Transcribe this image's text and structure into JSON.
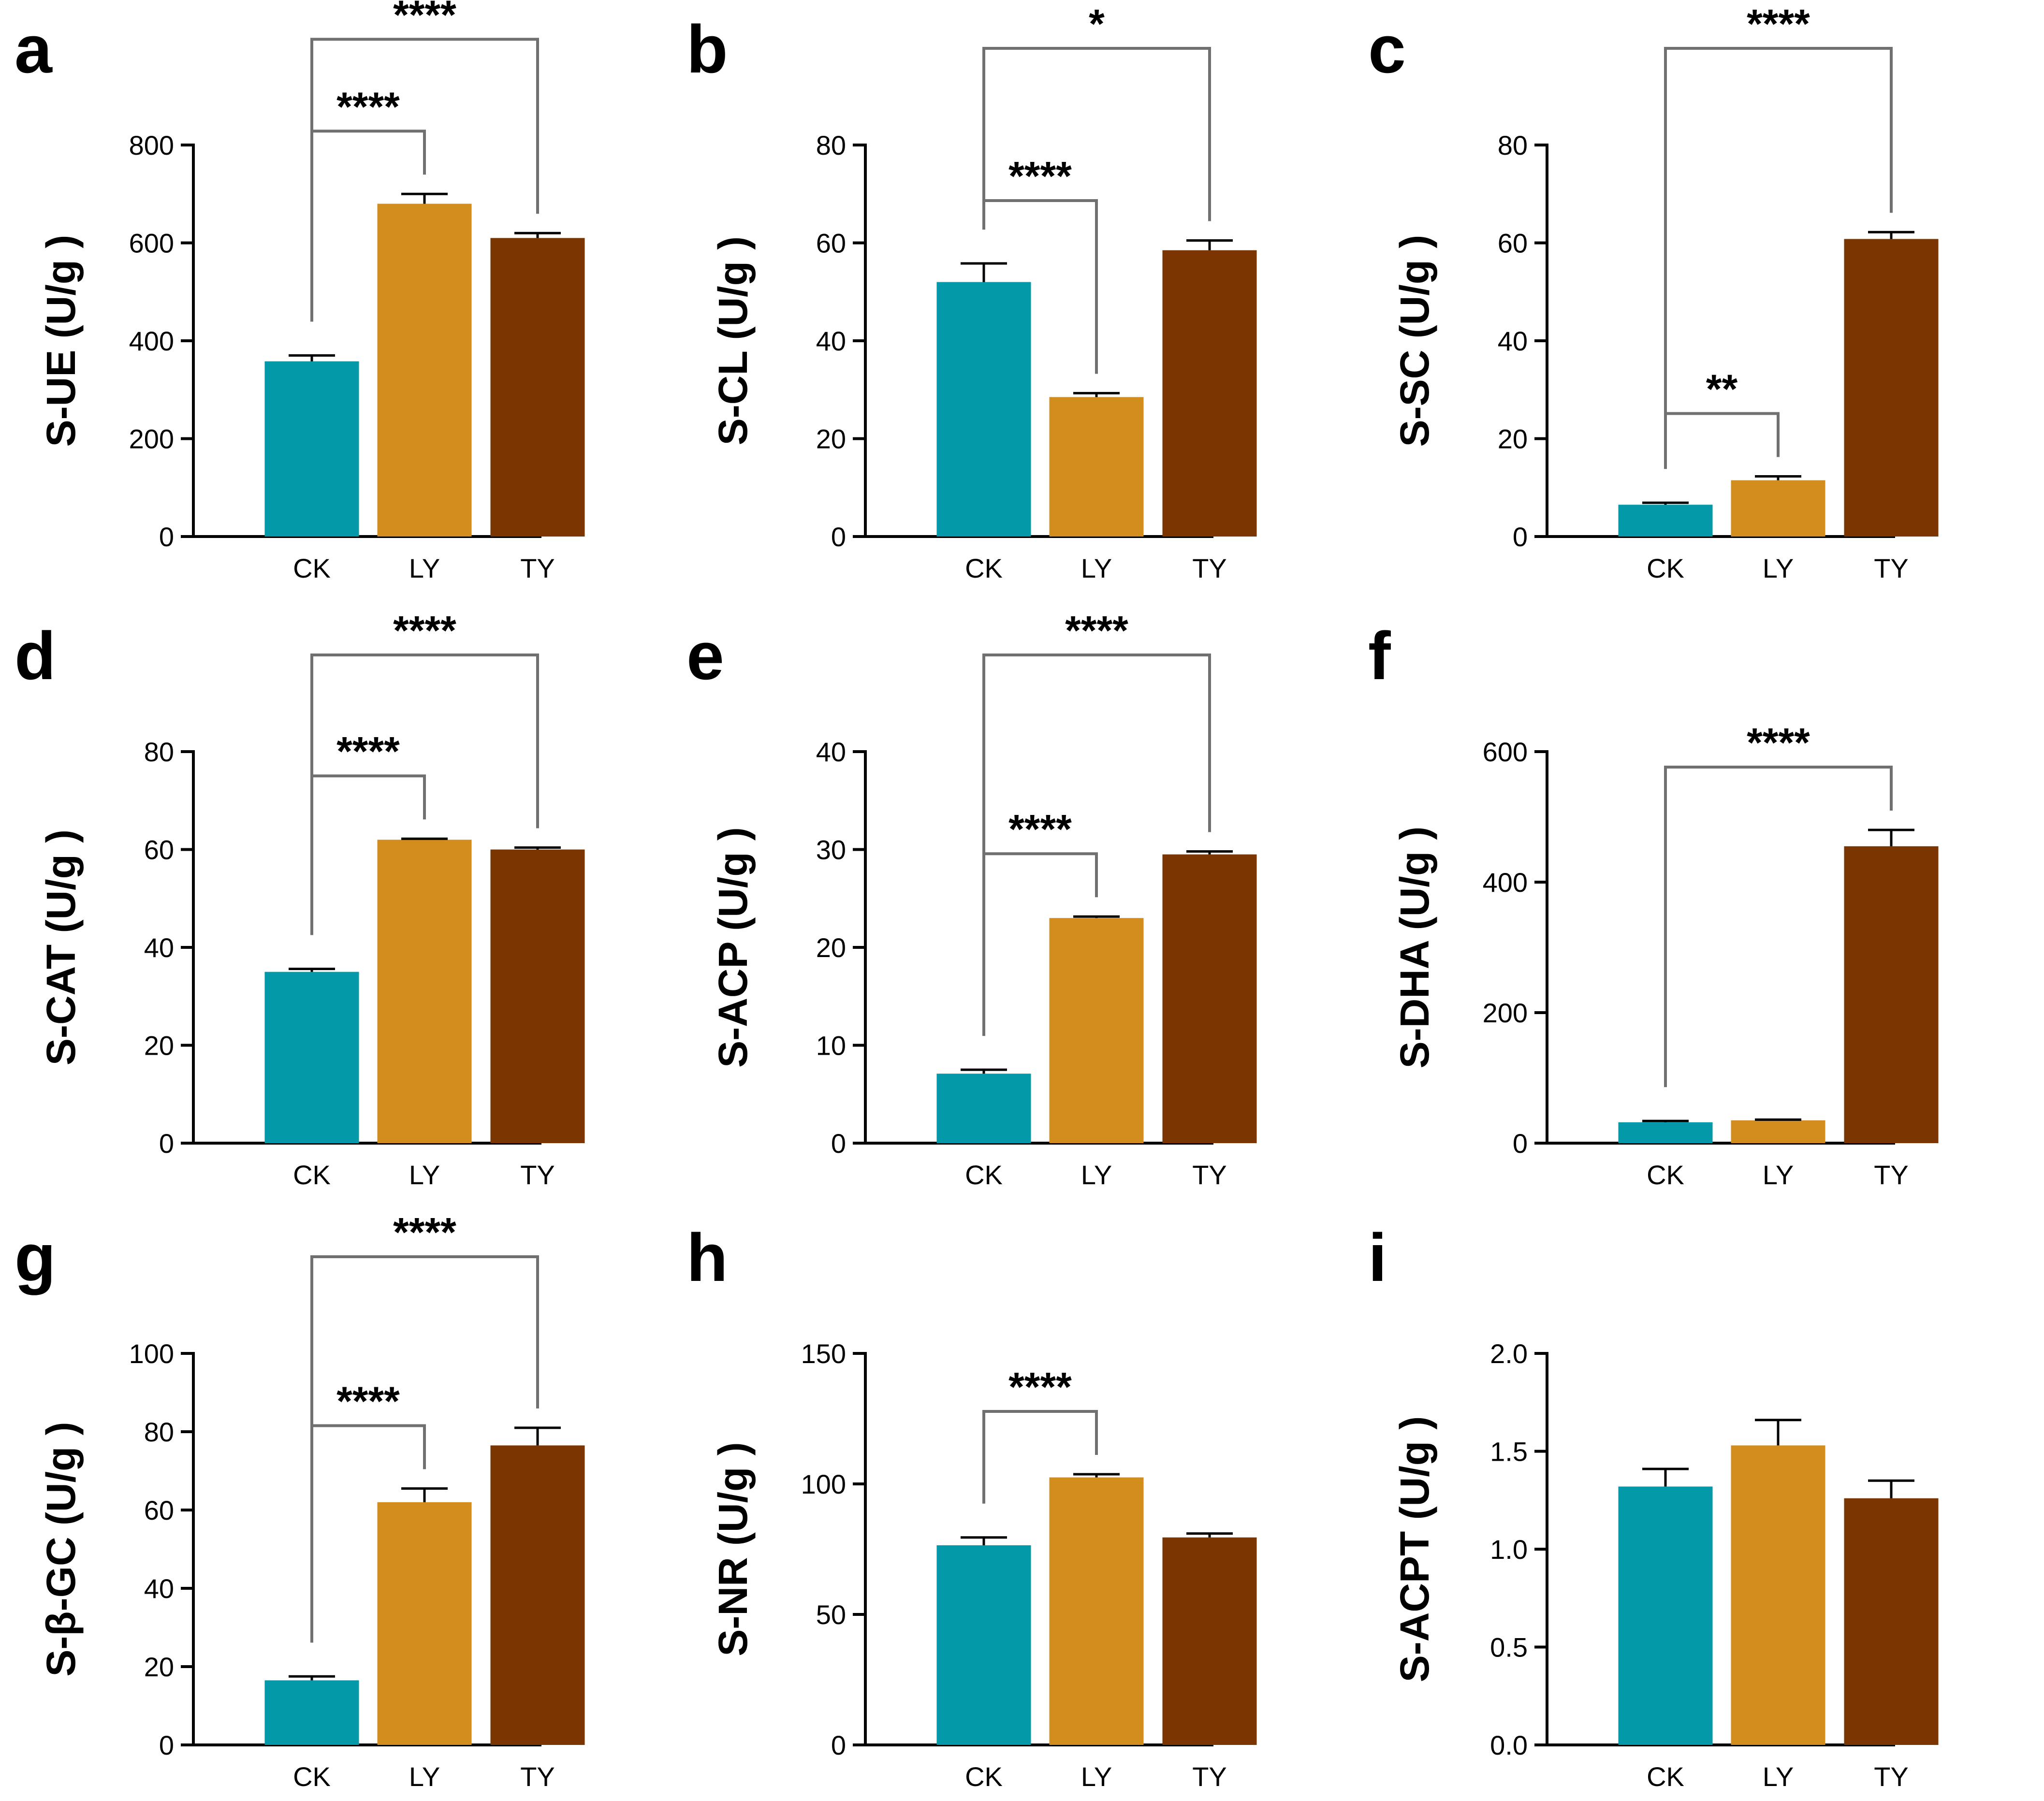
{
  "colors": {
    "CK": "#0399a8",
    "LY": "#d38d1d",
    "TY": "#7a3501",
    "bracket": "#707070",
    "axis": "#000000"
  },
  "chart_data": [
    {
      "letter": "a",
      "type": "bar",
      "ylabel": "S-UE (U/g )",
      "categories": [
        "CK",
        "LY",
        "TY"
      ],
      "values": [
        358,
        680,
        610
      ],
      "errors": [
        12,
        20,
        10
      ],
      "ylim": [
        0,
        800
      ],
      "yticks": [
        "0",
        "200",
        "400",
        "600",
        "800"
      ],
      "brackets": [
        {
          "from": 0,
          "to": 1,
          "label": "****"
        },
        {
          "from": 0,
          "to": 2,
          "label": "****"
        }
      ]
    },
    {
      "letter": "b",
      "type": "bar",
      "ylabel": "S-CL (U/g )",
      "categories": [
        "CK",
        "LY",
        "TY"
      ],
      "values": [
        52,
        28.5,
        58.5
      ],
      "errors": [
        3.8,
        0.8,
        2
      ],
      "ylim": [
        0,
        80
      ],
      "yticks": [
        "0",
        "20",
        "40",
        "60",
        "80"
      ],
      "brackets": [
        {
          "from": 0,
          "to": 1,
          "label": "****"
        },
        {
          "from": 0,
          "to": 2,
          "label": "*"
        }
      ]
    },
    {
      "letter": "c",
      "type": "bar",
      "ylabel": "S-SC (U/g )",
      "categories": [
        "CK",
        "LY",
        "TY"
      ],
      "values": [
        6.5,
        11.5,
        60.8
      ],
      "errors": [
        0.4,
        0.8,
        1.4
      ],
      "ylim": [
        0,
        80
      ],
      "yticks": [
        "0",
        "20",
        "40",
        "60",
        "80"
      ],
      "brackets": [
        {
          "from": 0,
          "to": 1,
          "label": "**"
        },
        {
          "from": 0,
          "to": 2,
          "label": "****"
        }
      ]
    },
    {
      "letter": "d",
      "type": "bar",
      "ylabel": "S-CAT (U/g )",
      "categories": [
        "CK",
        "LY",
        "TY"
      ],
      "values": [
        35,
        62,
        60
      ],
      "errors": [
        0.6,
        0.2,
        0.4
      ],
      "ylim": [
        0,
        80
      ],
      "yticks": [
        "0",
        "20",
        "40",
        "60",
        "80"
      ],
      "brackets": [
        {
          "from": 0,
          "to": 1,
          "label": "****"
        },
        {
          "from": 0,
          "to": 2,
          "label": "****"
        }
      ]
    },
    {
      "letter": "e",
      "type": "bar",
      "ylabel": "S-ACP (U/g )",
      "categories": [
        "CK",
        "LY",
        "TY"
      ],
      "values": [
        7.1,
        23,
        29.5
      ],
      "errors": [
        0.4,
        0.15,
        0.3
      ],
      "ylim": [
        0,
        40
      ],
      "yticks": [
        "0",
        "10",
        "20",
        "30",
        "40"
      ],
      "brackets": [
        {
          "from": 0,
          "to": 1,
          "label": "****"
        },
        {
          "from": 0,
          "to": 2,
          "label": "****"
        }
      ]
    },
    {
      "letter": "f",
      "type": "bar",
      "ylabel": "S-DHA (U/g )",
      "categories": [
        "CK",
        "LY",
        "TY"
      ],
      "values": [
        32,
        35,
        455
      ],
      "errors": [
        2,
        1,
        25
      ],
      "ylim": [
        0,
        600
      ],
      "yticks": [
        "0",
        "200",
        "400",
        "600"
      ],
      "brackets": [
        {
          "from": 0,
          "to": 2,
          "label": "****"
        }
      ]
    },
    {
      "letter": "g",
      "type": "bar",
      "ylabel": "S-β-GC (U/g )",
      "categories": [
        "CK",
        "LY",
        "TY"
      ],
      "values": [
        16.5,
        62,
        76.5
      ],
      "errors": [
        1,
        3.5,
        4.5
      ],
      "ylim": [
        0,
        100
      ],
      "yticks": [
        "0",
        "20",
        "40",
        "60",
        "80",
        "100"
      ],
      "brackets": [
        {
          "from": 0,
          "to": 1,
          "label": "****"
        },
        {
          "from": 0,
          "to": 2,
          "label": "****"
        }
      ]
    },
    {
      "letter": "h",
      "type": "bar",
      "ylabel": "S-NR (U/g )",
      "categories": [
        "CK",
        "LY",
        "TY"
      ],
      "values": [
        76.5,
        102.5,
        79.5
      ],
      "errors": [
        3,
        1.2,
        1.5
      ],
      "ylim": [
        0,
        150
      ],
      "yticks": [
        "0",
        "50",
        "100",
        "150"
      ],
      "brackets": [
        {
          "from": 0,
          "to": 1,
          "label": "****"
        }
      ]
    },
    {
      "letter": "i",
      "type": "bar",
      "ylabel": "S-ACPT (U/g )",
      "categories": [
        "CK",
        "LY",
        "TY"
      ],
      "values": [
        1.32,
        1.53,
        1.26
      ],
      "errors": [
        0.09,
        0.13,
        0.09
      ],
      "ylim": [
        0,
        2.0
      ],
      "yticks": [
        "0.0",
        "0.5",
        "1.0",
        "1.5",
        "2.0"
      ],
      "brackets": []
    }
  ]
}
